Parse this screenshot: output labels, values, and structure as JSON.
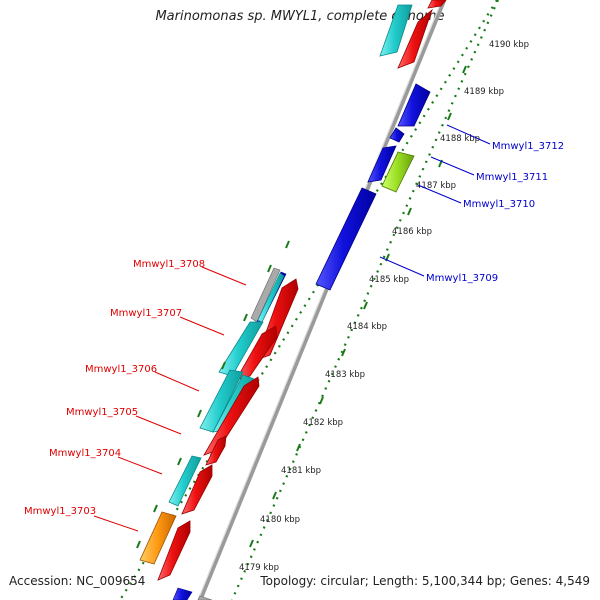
{
  "title": "Marinomonas sp. MWYL1, complete genome",
  "footer": {
    "accession": "Accession: NC_009654",
    "info": "Topology: circular; Length: 5,100,344 bp; Genes: 4,549"
  },
  "colors": {
    "forward_label": "#e00000",
    "reverse_label": "#0000cc",
    "tick": "#1a7a1a",
    "backbone": "#888888",
    "cyan": "#22cccc",
    "red": "#ee1111",
    "blue": "#1111dd",
    "green": "#99dd22",
    "orange": "#ff9911"
  },
  "kbp_ticks": [
    {
      "label": "4179 kbp"
    },
    {
      "label": "4180 kbp"
    },
    {
      "label": "4181 kbp"
    },
    {
      "label": "4182 kbp"
    },
    {
      "label": "4183 kbp"
    },
    {
      "label": "4184 kbp"
    },
    {
      "label": "4185 kbp"
    },
    {
      "label": "4186 kbp"
    },
    {
      "label": "4187 kbp"
    },
    {
      "label": "4188 kbp"
    },
    {
      "label": "4189 kbp"
    },
    {
      "label": "4190 kbp"
    }
  ],
  "gene_labels": [
    {
      "text": "Mmwyl1_3703",
      "strand": "forward"
    },
    {
      "text": "Mmwyl1_3704",
      "strand": "forward"
    },
    {
      "text": "Mmwyl1_3705",
      "strand": "forward"
    },
    {
      "text": "Mmwyl1_3706",
      "strand": "forward"
    },
    {
      "text": "Mmwyl1_3707",
      "strand": "forward"
    },
    {
      "text": "Mmwyl1_3708",
      "strand": "forward"
    },
    {
      "text": "Mmwyl1_3709",
      "strand": "reverse"
    },
    {
      "text": "Mmwyl1_3710",
      "strand": "reverse"
    },
    {
      "text": "Mmwyl1_3711",
      "strand": "reverse"
    },
    {
      "text": "Mmwyl1_3712",
      "strand": "reverse"
    }
  ]
}
